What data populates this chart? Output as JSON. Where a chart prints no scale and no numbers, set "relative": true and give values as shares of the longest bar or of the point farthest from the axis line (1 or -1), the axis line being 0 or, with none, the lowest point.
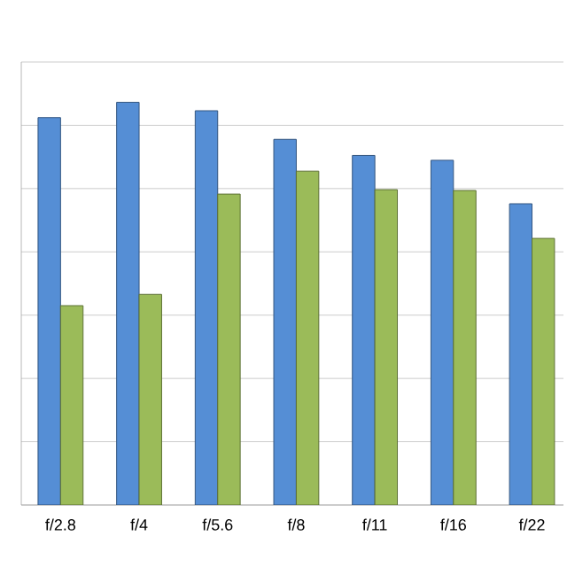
{
  "chart_data": {
    "type": "bar",
    "relative": true,
    "categories": [
      "f/2.8",
      "f/4",
      "f/5.6",
      "f/8",
      "f/11",
      "f/16",
      "f/22"
    ],
    "series": [
      {
        "color": "#558ed5",
        "values": [
          0.962,
          1,
          0.979,
          0.908,
          0.868,
          0.856,
          0.748
        ]
      },
      {
        "color": "#9bbb59",
        "values": [
          0.495,
          0.523,
          0.772,
          0.829,
          0.783,
          0.781,
          0.662
        ]
      }
    ],
    "grid": "y",
    "tick_labels": "x"
  }
}
